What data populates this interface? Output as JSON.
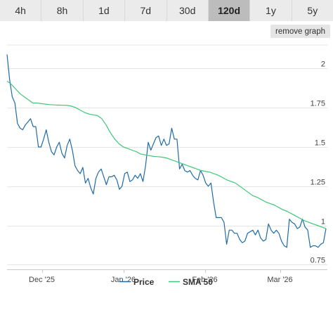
{
  "tabs": [
    {
      "label": "4h",
      "active": false
    },
    {
      "label": "8h",
      "active": false
    },
    {
      "label": "1d",
      "active": false
    },
    {
      "label": "7d",
      "active": false
    },
    {
      "label": "30d",
      "active": false
    },
    {
      "label": "120d",
      "active": true
    },
    {
      "label": "1y",
      "active": false
    },
    {
      "label": "5y",
      "active": false
    }
  ],
  "remove_graph_label": "remove graph",
  "chart_data": {
    "type": "line",
    "title": "",
    "xlabel": "",
    "ylabel": "",
    "x_ticks": [
      "Dec '25",
      "Jan '26",
      "Feb '26",
      "Mar '26"
    ],
    "y_ticks": [
      "0.75",
      "1",
      "1.25",
      "1.5",
      "1.75",
      "2"
    ],
    "y_tick_values": [
      0.75,
      1,
      1.25,
      1.5,
      1.75,
      2
    ],
    "ylim": [
      0.72,
      2.15
    ],
    "grid": true,
    "legend_position": "bottom-center",
    "series": [
      {
        "name": "Price",
        "color": "#1f6ba8",
        "values": [
          2.09,
          1.93,
          1.82,
          1.78,
          1.65,
          1.62,
          1.61,
          1.64,
          1.66,
          1.68,
          1.63,
          1.63,
          1.5,
          1.5,
          1.55,
          1.61,
          1.53,
          1.47,
          1.45,
          1.5,
          1.53,
          1.46,
          1.43,
          1.51,
          1.55,
          1.48,
          1.38,
          1.35,
          1.33,
          1.37,
          1.27,
          1.3,
          1.24,
          1.2,
          1.3,
          1.34,
          1.36,
          1.31,
          1.26,
          1.31,
          1.31,
          1.32,
          1.29,
          1.23,
          1.25,
          1.33,
          1.34,
          1.28,
          1.29,
          1.32,
          1.3,
          1.33,
          1.28,
          1.38,
          1.53,
          1.48,
          1.52,
          1.56,
          1.57,
          1.51,
          1.55,
          1.51,
          1.52,
          1.62,
          1.55,
          1.55,
          1.36,
          1.39,
          1.35,
          1.34,
          1.35,
          1.32,
          1.3,
          1.29,
          1.35,
          1.32,
          1.27,
          1.25,
          1.27,
          1.15,
          1.05,
          1.05,
          1.05,
          1.02,
          0.88,
          0.97,
          0.97,
          0.95,
          0.95,
          0.91,
          0.89,
          0.9,
          0.95,
          0.96,
          0.97,
          0.94,
          0.97,
          0.92,
          0.9,
          0.91,
          1.01,
          0.97,
          0.95,
          0.97,
          0.95,
          0.9,
          0.87,
          0.86,
          1.04,
          1.02,
          1.01,
          0.98,
          0.99,
          1.04,
          0.99,
          0.97,
          0.86,
          0.87,
          0.87,
          0.86,
          0.88,
          0.89,
          0.98
        ]
      },
      {
        "name": "SMA 50",
        "color": "#3ec878",
        "values": [
          1.92,
          1.9,
          1.87,
          1.84,
          1.82,
          1.8,
          1.78,
          1.78,
          1.776,
          1.773,
          1.77,
          1.768,
          1.767,
          1.766,
          1.765,
          1.76,
          1.75,
          1.735,
          1.72,
          1.71,
          1.705,
          1.7,
          1.68,
          1.64,
          1.59,
          1.55,
          1.52,
          1.5,
          1.49,
          1.48,
          1.47,
          1.455,
          1.45,
          1.445,
          1.44,
          1.438,
          1.435,
          1.43,
          1.42,
          1.41,
          1.4,
          1.39,
          1.38,
          1.37,
          1.36,
          1.35,
          1.345,
          1.34,
          1.33,
          1.32,
          1.305,
          1.29,
          1.28,
          1.27,
          1.25,
          1.23,
          1.21,
          1.19,
          1.18,
          1.165,
          1.15,
          1.14,
          1.13,
          1.115,
          1.1,
          1.09,
          1.075,
          1.06,
          1.045,
          1.03,
          1.02,
          1.01,
          1.0,
          0.99,
          0.98
        ]
      }
    ]
  }
}
